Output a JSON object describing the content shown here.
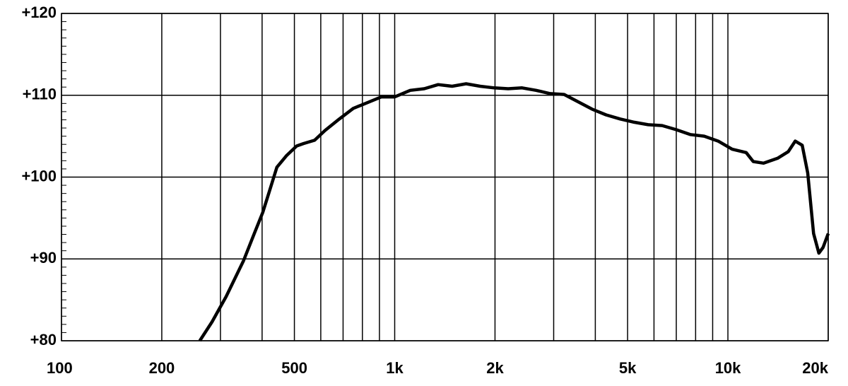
{
  "chart_data": {
    "type": "line",
    "xscale": "log",
    "color": "#000000",
    "grid": true,
    "x": [
      260,
      283,
      312,
      352,
      379,
      402,
      418,
      443,
      473,
      508,
      533,
      575,
      618,
      682,
      751,
      828,
      912,
      1000,
      1113,
      1226,
      1350,
      1487,
      1638,
      1805,
      1988,
      2190,
      2412,
      2658,
      2928,
      3225,
      3553,
      3913,
      4311,
      4749,
      5232,
      5764,
      6349,
      6994,
      7705,
      8488,
      9351,
      10300,
      11347,
      11910,
      12797,
      14093,
      15170,
      15920,
      16710,
      17360,
      18080,
      18750,
      19300,
      20000
    ],
    "values": [
      80,
      82.3,
      85.4,
      89.8,
      93.1,
      95.7,
      97.9,
      101.2,
      102.6,
      103.8,
      104.1,
      104.5,
      105.7,
      107.1,
      108.4,
      109.1,
      109.8,
      109.8,
      110.6,
      110.8,
      111.3,
      111.1,
      111.4,
      111.1,
      110.9,
      110.8,
      110.9,
      110.6,
      110.2,
      110.1,
      109.2,
      108.3,
      107.6,
      107.1,
      106.7,
      106.4,
      106.3,
      105.8,
      105.2,
      105.0,
      104.4,
      103.4,
      103.0,
      101.9,
      101.7,
      102.3,
      103.1,
      104.4,
      103.9,
      100.5,
      93.1,
      90.7,
      91.4,
      93.1
    ],
    "xlim": [
      100,
      20000
    ],
    "xticks": [
      100,
      200,
      500,
      {
        "value": 1000,
        "label": "1k"
      },
      {
        "value": 2000,
        "label": "2k"
      },
      {
        "value": 5000,
        "label": "5k"
      },
      {
        "value": 10000,
        "label": "10k"
      },
      {
        "value": 20000,
        "label": "20k"
      }
    ],
    "xgrid": [
      300,
      400,
      600,
      700,
      800,
      900,
      3000,
      4000,
      6000,
      7000,
      8000,
      9000
    ],
    "ylim": [
      80,
      120
    ],
    "yticks": [
      {
        "value": 80,
        "label": "+80"
      },
      {
        "value": 90,
        "label": "+90"
      },
      {
        "value": 100,
        "label": "+100"
      },
      {
        "value": 110,
        "label": "+110"
      },
      {
        "value": 120,
        "label": "+120"
      }
    ],
    "yminorticks": [
      81,
      82,
      83,
      84,
      85,
      86,
      87,
      88,
      89,
      91,
      92,
      93,
      94,
      95,
      96,
      97,
      98,
      99,
      101,
      102,
      103,
      104,
      105,
      106,
      107,
      108,
      109,
      111,
      112,
      113,
      114,
      115,
      116,
      117,
      118,
      119
    ]
  }
}
